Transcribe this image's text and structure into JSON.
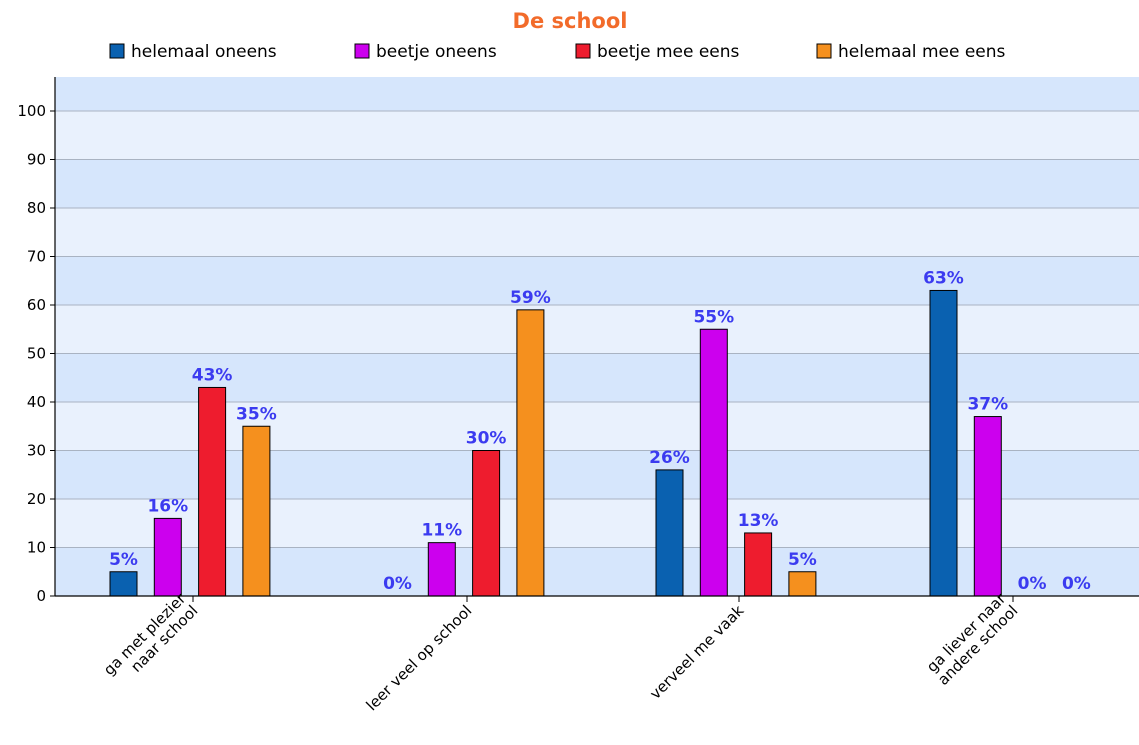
{
  "chart_data": {
    "type": "bar",
    "title": "De school",
    "xlabel": "",
    "ylabel": "",
    "ylim": [
      0,
      100
    ],
    "yticks": [
      0,
      10,
      20,
      30,
      40,
      50,
      60,
      70,
      80,
      90,
      100
    ],
    "grid": true,
    "legend_position": "top",
    "categories": [
      [
        "ga met plezier",
        "naar school"
      ],
      [
        "leer veel op school"
      ],
      [
        "verveel me vaak"
      ],
      [
        "ga liever naar",
        "andere school"
      ]
    ],
    "series": [
      {
        "name": "helemaal oneens",
        "color": "#0a61b0",
        "values": [
          5,
          0,
          26,
          63
        ],
        "labels": [
          "5%",
          "0%",
          "26%",
          "63%"
        ]
      },
      {
        "name": "beetje oneens",
        "color": "#cc00ee",
        "values": [
          16,
          11,
          55,
          37
        ],
        "labels": [
          "16%",
          "11%",
          "55%",
          "37%"
        ]
      },
      {
        "name": "beetje mee eens",
        "color": "#ee1c2e",
        "values": [
          43,
          30,
          13,
          0
        ],
        "labels": [
          "43%",
          "30%",
          "13%",
          "0%"
        ]
      },
      {
        "name": "helemaal mee eens",
        "color": "#f5901e",
        "values": [
          35,
          59,
          5,
          0
        ],
        "labels": [
          "35%",
          "59%",
          "5%",
          "0%"
        ]
      }
    ],
    "colors": {
      "title": "#f26b2a",
      "data_label": "#3b3bf0",
      "band_dark": "#d6e6fc",
      "band_light": "#e9f1fd",
      "grid_line": "#a9b3c2"
    }
  }
}
